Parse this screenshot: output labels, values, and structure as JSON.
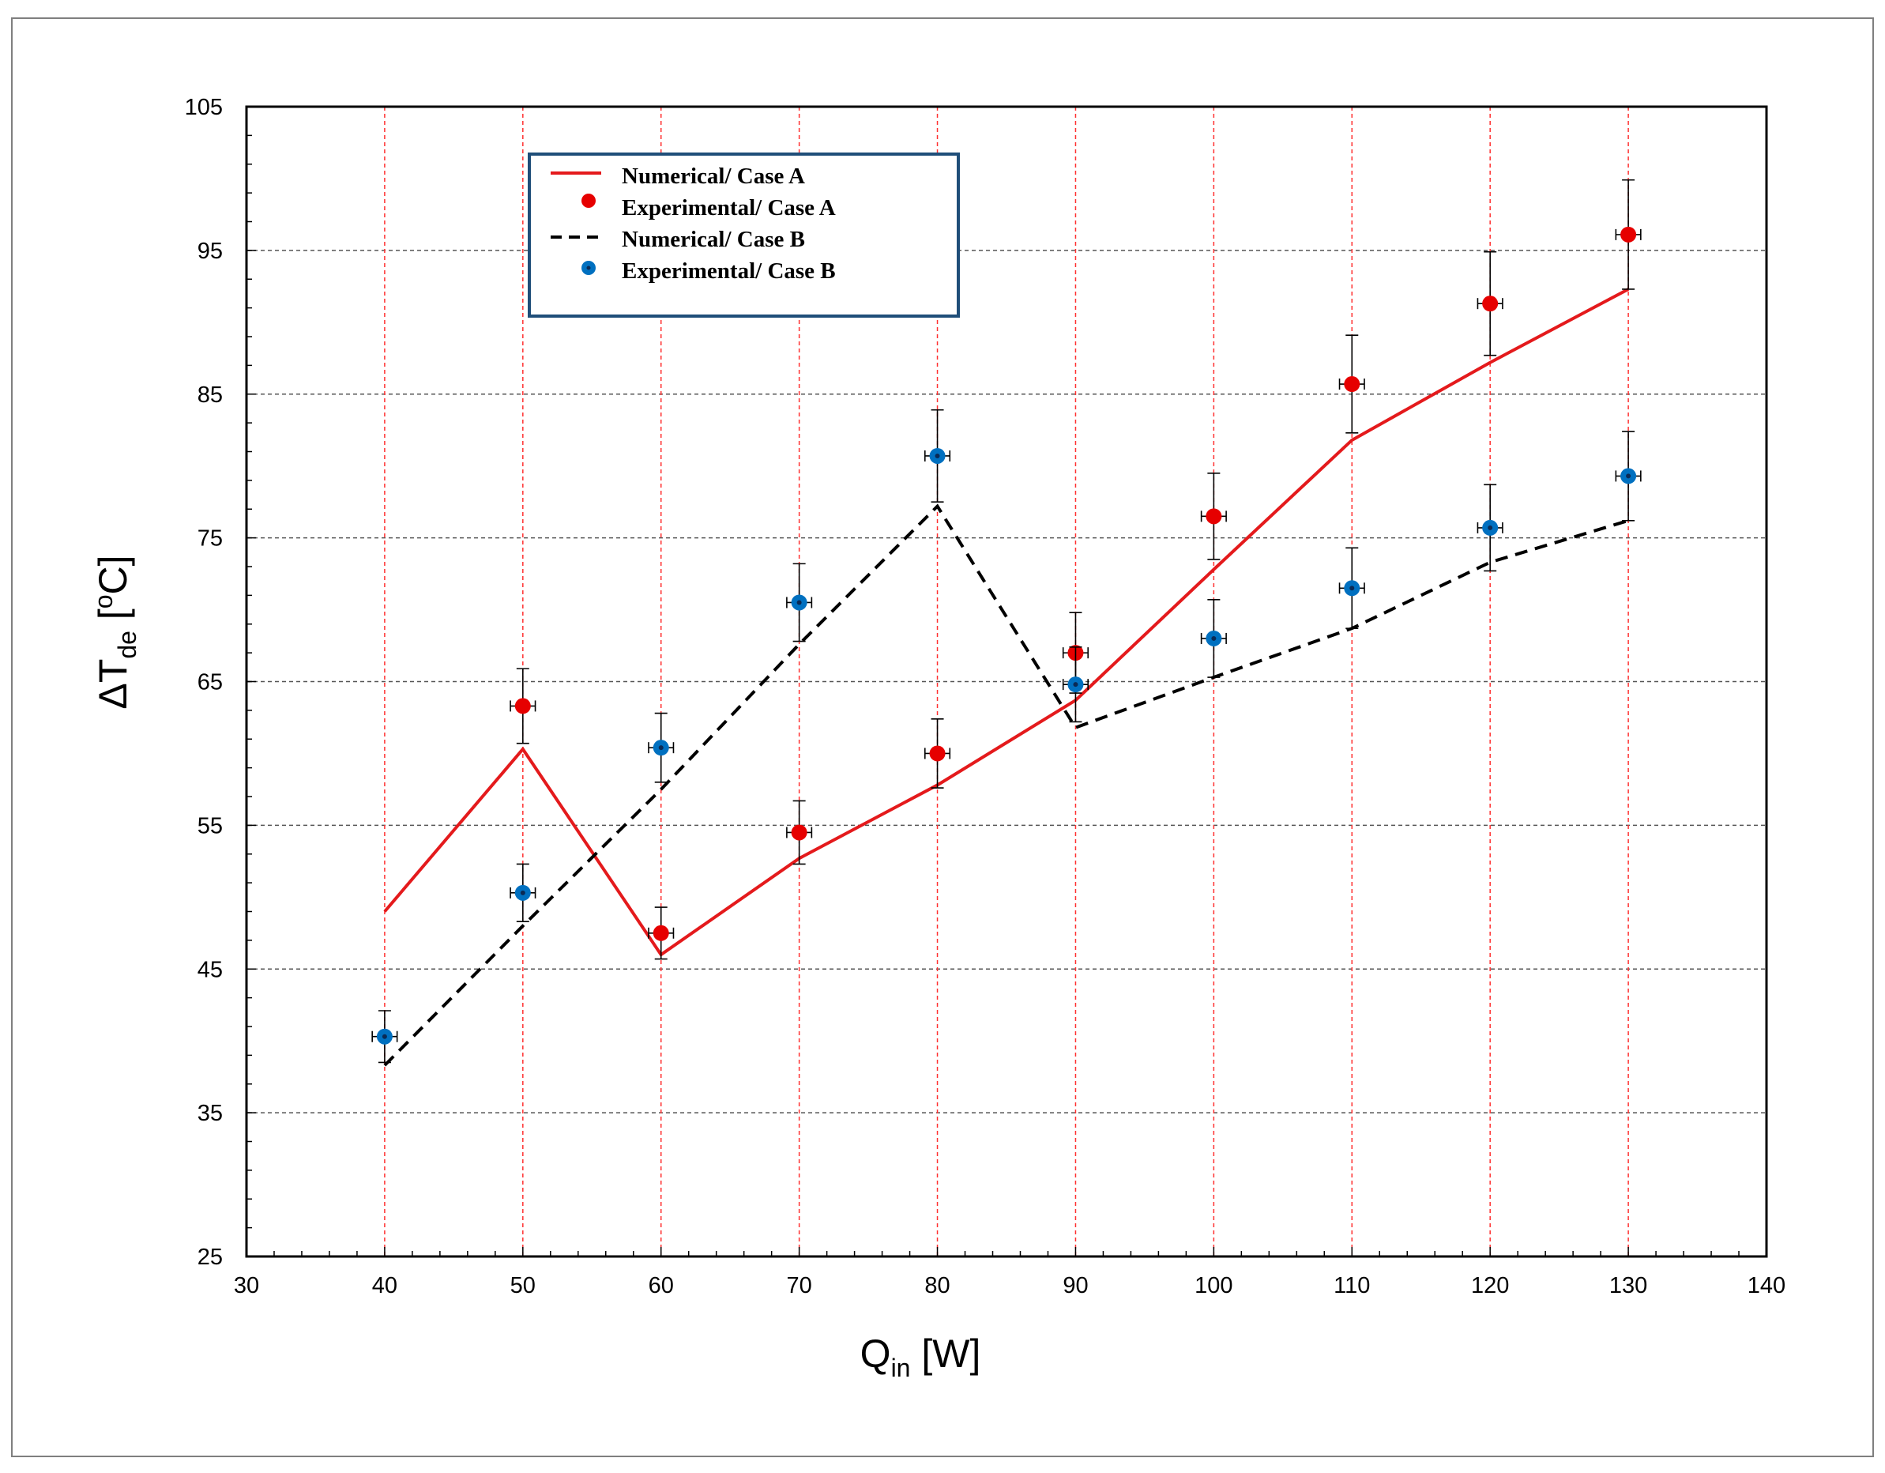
{
  "chart_data": {
    "type": "scatter",
    "title": "",
    "xlabel": {
      "main": "Q",
      "sub": "in",
      "unit": " [W]"
    },
    "ylabel": {
      "main": "ΔT",
      "sub": "de",
      "pre_sup": "  [",
      "sup": "o",
      "post": "C]"
    },
    "xlim": [
      30,
      140
    ],
    "ylim": [
      25,
      105
    ],
    "xticks": [
      30,
      40,
      50,
      60,
      70,
      80,
      90,
      100,
      110,
      120,
      130,
      140
    ],
    "yticks": [
      25,
      35,
      45,
      55,
      65,
      75,
      85,
      95,
      105
    ],
    "x_gridlines": [
      40,
      50,
      60,
      70,
      80,
      90,
      100,
      110,
      120,
      130
    ],
    "y_gridlines": [
      35,
      45,
      55,
      65,
      75,
      85,
      95
    ],
    "legend_position": "top-left",
    "series": [
      {
        "name": "Numerical/ Case A",
        "kind": "line",
        "color": "#e41a1c",
        "dash": "solid",
        "x": [
          40,
          50,
          60,
          70,
          80,
          90,
          100,
          110,
          120,
          130
        ],
        "y": [
          49.0,
          60.3,
          46.0,
          52.7,
          57.8,
          63.7,
          72.8,
          81.8,
          87.2,
          92.3
        ]
      },
      {
        "name": "Experimental/ Case A",
        "kind": "marker",
        "color": "#e60000",
        "x": [
          50,
          60,
          70,
          80,
          90,
          100,
          110,
          120,
          130
        ],
        "y": [
          63.3,
          47.5,
          54.5,
          60.0,
          67.0,
          76.5,
          85.7,
          91.3,
          96.1
        ],
        "yerr": [
          2.6,
          1.8,
          2.2,
          2.4,
          2.8,
          3.0,
          3.4,
          3.6,
          3.8
        ],
        "xerr": 0.9
      },
      {
        "name": "Numerical/ Case B",
        "kind": "line",
        "color": "#000000",
        "dash": "dashed",
        "x": [
          40,
          50,
          60,
          70,
          80,
          90,
          100,
          110,
          120,
          130
        ],
        "y": [
          38.3,
          48.0,
          57.5,
          67.6,
          77.2,
          61.8,
          65.3,
          68.7,
          73.3,
          76.2
        ]
      },
      {
        "name": "Experimental/ Case B",
        "kind": "marker",
        "color": "#0070c0",
        "x": [
          40,
          50,
          60,
          70,
          80,
          90,
          100,
          110,
          120,
          130
        ],
        "y": [
          40.3,
          50.3,
          60.4,
          70.5,
          80.7,
          64.8,
          68.0,
          71.5,
          75.7,
          79.3
        ],
        "yerr": [
          1.8,
          2.0,
          2.4,
          2.7,
          3.2,
          2.6,
          2.7,
          2.8,
          3.0,
          3.1
        ],
        "xerr": 0.9
      }
    ]
  }
}
